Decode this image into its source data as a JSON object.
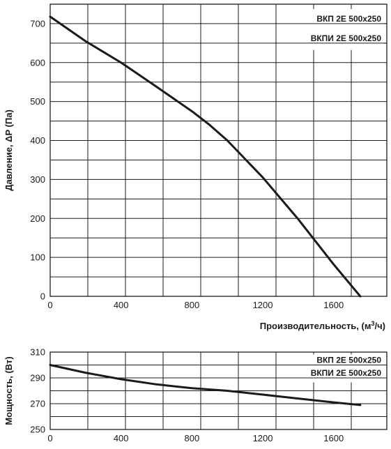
{
  "chart_data": [
    {
      "type": "line",
      "title": "",
      "xlabel": "Производительность, (м³/ч)",
      "xlabel_main": "Производительность, (м",
      "xlabel_sup": "3",
      "xlabel_tail": "/ч)",
      "ylabel": "Давление, ΔP (Па)",
      "xlim": [
        0,
        1900
      ],
      "ylim": [
        0,
        750
      ],
      "x_ticks": [
        0,
        400,
        800,
        1200,
        1600
      ],
      "y_ticks": [
        0,
        100,
        200,
        300,
        400,
        500,
        600,
        700
      ],
      "grid": true,
      "legend": [
        "ВКП 2Е 500х250",
        "ВКПИ 2Е 500х250"
      ],
      "legend_position": "top-right",
      "line_color": "#1a1a1a",
      "series": [
        {
          "x": [
            0,
            200,
            400,
            600,
            800,
            900,
            1000,
            1200,
            1400,
            1600,
            1750
          ],
          "y": [
            718,
            655,
            600,
            538,
            475,
            440,
            400,
            305,
            198,
            82,
            0
          ]
        }
      ]
    },
    {
      "type": "line",
      "title": "",
      "xlabel": "",
      "ylabel": "Мощность, (Вт)",
      "xlim": [
        0,
        1900
      ],
      "ylim": [
        250,
        310
      ],
      "x_ticks": [
        0,
        400,
        800,
        1200,
        1600
      ],
      "y_ticks": [
        250,
        270,
        290,
        310
      ],
      "grid": true,
      "legend": [
        "ВКП 2Е 500х250",
        "ВКПИ 2Е 500х250"
      ],
      "legend_position": "top-right",
      "line_color": "#1a1a1a",
      "series": [
        {
          "x": [
            0,
            200,
            400,
            600,
            800,
            1000,
            1200,
            1400,
            1600,
            1750
          ],
          "y": [
            300,
            294,
            289,
            285,
            282,
            280,
            277,
            274,
            271,
            269
          ]
        }
      ]
    }
  ]
}
